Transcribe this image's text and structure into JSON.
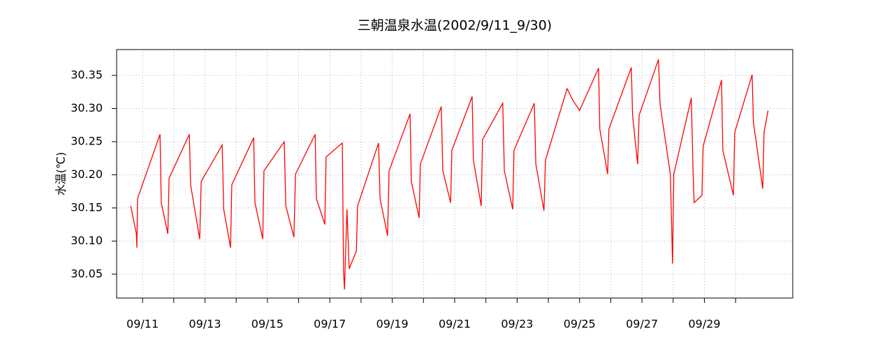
{
  "chart_data": {
    "type": "line",
    "title": "三朝温泉水温(2002/9/11_9/30)",
    "y_label": "水温(℃)",
    "color": "#ff0000",
    "grid": true,
    "xlim": [
      10.17,
      31.83
    ],
    "ylim": [
      30.014,
      30.389
    ],
    "xticks": [
      {
        "value": 11,
        "label": "09/11"
      },
      {
        "value": 13,
        "label": "09/13"
      },
      {
        "value": 15,
        "label": "09/15"
      },
      {
        "value": 17,
        "label": "09/17"
      },
      {
        "value": 19,
        "label": "09/19"
      },
      {
        "value": 21,
        "label": "09/21"
      },
      {
        "value": 23,
        "label": "09/23"
      },
      {
        "value": 25,
        "label": "09/25"
      },
      {
        "value": 27,
        "label": "09/27"
      },
      {
        "value": 29,
        "label": "09/29"
      }
    ],
    "xminorticks": [
      12,
      14,
      16,
      18,
      20,
      22,
      24,
      26,
      28,
      30
    ],
    "yticks": [
      30.05,
      {
        "value": 30.1,
        "label": "30.10"
      },
      30.15,
      {
        "value": 30.2,
        "label": "30.20"
      },
      30.25,
      {
        "value": 30.3,
        "label": "30.30"
      },
      30.35
    ],
    "x": [
      10.62,
      10.8,
      10.82,
      10.84,
      11.56,
      11.6,
      11.81,
      11.85,
      12.5,
      12.54,
      12.83,
      12.88,
      13.55,
      13.6,
      13.82,
      13.86,
      14.56,
      14.6,
      14.85,
      14.89,
      15.54,
      15.59,
      15.85,
      15.9,
      16.53,
      16.57,
      16.84,
      16.88,
      17.4,
      17.44,
      17.47,
      17.55,
      17.62,
      17.85,
      17.89,
      18.56,
      18.61,
      18.85,
      18.9,
      19.57,
      19.61,
      19.86,
      19.9,
      20.57,
      20.62,
      20.87,
      20.91,
      21.56,
      21.6,
      21.85,
      21.89,
      22.54,
      22.59,
      22.86,
      22.9,
      23.55,
      23.6,
      23.86,
      23.91,
      24.6,
      24.78,
      25.0,
      25.61,
      25.65,
      25.9,
      25.94,
      26.66,
      26.7,
      26.86,
      26.91,
      27.53,
      27.58,
      27.91,
      27.98,
      28.02,
      28.58,
      28.63,
      28.67,
      28.92,
      28.96,
      29.55,
      29.59,
      29.93,
      29.97,
      30.53,
      30.57,
      30.87,
      30.91,
      31.04
    ],
    "values": [
      30.153,
      30.111,
      30.09,
      30.164,
      30.261,
      30.158,
      30.111,
      30.195,
      30.261,
      30.185,
      30.103,
      30.19,
      30.245,
      30.148,
      30.09,
      30.185,
      30.256,
      30.158,
      30.103,
      30.206,
      30.25,
      30.153,
      30.106,
      30.201,
      30.261,
      30.164,
      30.125,
      30.227,
      30.248,
      30.053,
      30.027,
      30.148,
      30.058,
      30.085,
      30.153,
      30.248,
      30.164,
      30.108,
      30.206,
      30.292,
      30.19,
      30.135,
      30.216,
      30.303,
      30.206,
      30.158,
      30.237,
      30.318,
      30.222,
      30.153,
      30.253,
      30.308,
      30.206,
      30.148,
      30.237,
      30.308,
      30.216,
      30.146,
      30.222,
      30.33,
      30.313,
      30.297,
      30.361,
      30.269,
      30.201,
      30.269,
      30.362,
      30.29,
      30.216,
      30.29,
      30.374,
      30.306,
      30.201,
      30.066,
      30.201,
      30.316,
      30.216,
      30.158,
      30.169,
      30.243,
      30.343,
      30.237,
      30.169,
      30.264,
      30.351,
      30.279,
      30.179,
      30.264,
      30.297
    ]
  }
}
